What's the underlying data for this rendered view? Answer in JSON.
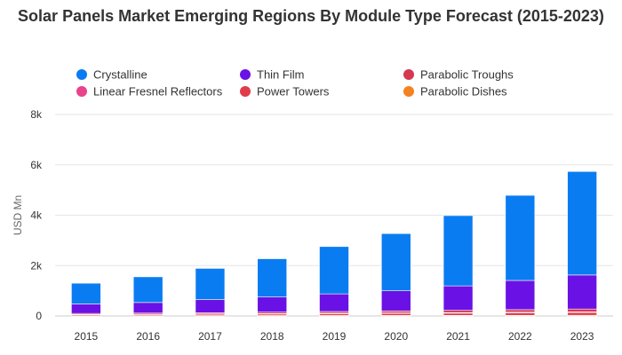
{
  "chart_data": {
    "type": "bar",
    "stacked": true,
    "title": "Solar Panels Market Emerging Regions By Module Type Forecast (2015-2023)",
    "ylabel": "USD Mn",
    "xlabel": "",
    "ylim": [
      0,
      8000
    ],
    "yticks": [
      {
        "value": 0,
        "label": "0"
      },
      {
        "value": 2000,
        "label": "2k"
      },
      {
        "value": 4000,
        "label": "4k"
      },
      {
        "value": 6000,
        "label": "6k"
      },
      {
        "value": 8000,
        "label": "8k"
      }
    ],
    "grid": true,
    "legend_position": "top",
    "categories": [
      "2015",
      "2016",
      "2017",
      "2018",
      "2019",
      "2020",
      "2021",
      "2022",
      "2023"
    ],
    "series": [
      {
        "name": "Parabolic Dishes",
        "color": "#f58220",
        "values": [
          10,
          12,
          14,
          16,
          18,
          20,
          22,
          25,
          28
        ]
      },
      {
        "name": "Power Towers",
        "color": "#e03c4c",
        "values": [
          40,
          45,
          50,
          60,
          70,
          80,
          90,
          100,
          110
        ]
      },
      {
        "name": "Linear Fresnel Reflectors",
        "color": "#e8438d",
        "values": [
          10,
          12,
          14,
          16,
          18,
          20,
          22,
          25,
          28
        ]
      },
      {
        "name": "Parabolic Troughs",
        "color": "#d63850",
        "values": [
          40,
          45,
          50,
          60,
          70,
          80,
          90,
          100,
          110
        ]
      },
      {
        "name": "Thin Film",
        "color": "#6a11e6",
        "values": [
          380,
          420,
          520,
          600,
          700,
          800,
          970,
          1160,
          1350
        ]
      },
      {
        "name": "Crystalline",
        "color": "#0a7cf2",
        "values": [
          820,
          1020,
          1240,
          1520,
          1880,
          2270,
          2790,
          3380,
          4110
        ]
      }
    ],
    "legend_order": [
      "Crystalline",
      "Thin Film",
      "Parabolic Troughs",
      "Linear Fresnel Reflectors",
      "Power Towers",
      "Parabolic Dishes"
    ]
  }
}
